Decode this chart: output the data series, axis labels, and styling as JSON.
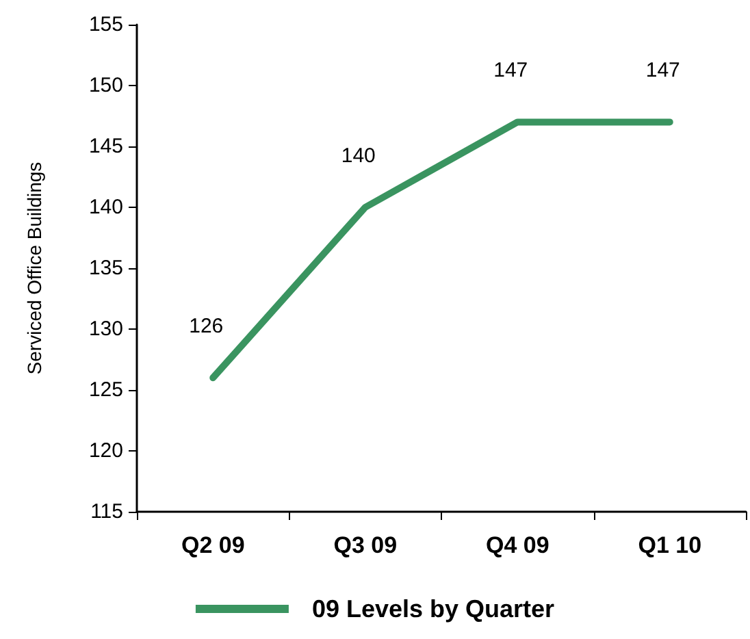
{
  "chart_data": {
    "type": "line",
    "ylabel": "Serviced Office Buildings",
    "categories": [
      "Q2 09",
      "Q3 09",
      "Q4 09",
      "Q1 10"
    ],
    "series": [
      {
        "name": "09 Levels by Quarter",
        "color": "#3a9460",
        "values": [
          126,
          140,
          147,
          147
        ]
      }
    ],
    "ylim": [
      115,
      155
    ],
    "yticks": [
      115,
      120,
      125,
      130,
      135,
      140,
      145,
      150,
      155
    ],
    "grid": false,
    "legend": "bottom",
    "data_labels": true,
    "marker": "none",
    "line_style": "solid"
  }
}
